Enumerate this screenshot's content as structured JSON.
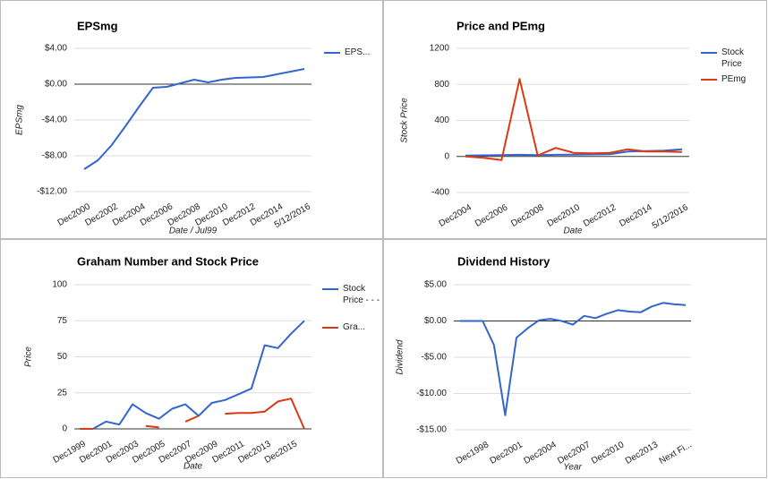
{
  "chart_data": [
    {
      "type": "line",
      "title": "EPSmg",
      "y_label": "EPSmg",
      "x_label": "Date / Jul99",
      "categories": [
        "Dec2000",
        null,
        "Dec2002",
        null,
        "Dec2004",
        null,
        "Dec2006",
        null,
        "Dec2008",
        null,
        "Dec2010",
        null,
        "Dec2012",
        null,
        "Dec2014",
        null,
        "5/12/2016"
      ],
      "series": [
        {
          "name": "EPS...",
          "color": "#3366cc",
          "values": [
            -9.5,
            -8.5,
            -6.8,
            -4.7,
            -2.5,
            -0.4,
            -0.3,
            0.1,
            0.5,
            0.2,
            0.5,
            0.7,
            0.75,
            0.8,
            1.1,
            1.4,
            1.7
          ]
        }
      ],
      "ylim": [
        -12,
        4
      ],
      "yticks": [
        {
          "value": -12,
          "label": "-$12.00"
        },
        {
          "value": -8,
          "label": "-$8.00"
        },
        {
          "value": -4,
          "label": "-$4.00"
        },
        {
          "value": 0,
          "label": "$0.00"
        },
        {
          "value": 4,
          "label": "$4.00"
        }
      ],
      "grid": true,
      "legend": "right"
    },
    {
      "type": "line",
      "title": "Price and PEmg",
      "y_label": "Stock Price",
      "x_label": "Date",
      "categories": [
        "Dec2004",
        null,
        "Dec2006",
        null,
        "Dec2008",
        null,
        "Dec2010",
        null,
        "Dec2012",
        null,
        "Dec2014",
        null,
        "5/12/2016"
      ],
      "series": [
        {
          "name": "Stock Price",
          "color": "#3366cc",
          "values": [
            10,
            12,
            15,
            18,
            15,
            18,
            20,
            22,
            25,
            55,
            60,
            65,
            80
          ]
        },
        {
          "name": "PEmg",
          "color": "#dc3912",
          "values": [
            0,
            -15,
            -40,
            860,
            10,
            95,
            40,
            35,
            40,
            80,
            55,
            55,
            50
          ]
        }
      ],
      "ylim": [
        -400,
        1200
      ],
      "yticks": [
        -400,
        0,
        400,
        800,
        1200
      ],
      "grid": true,
      "legend": "right"
    },
    {
      "type": "line",
      "title": "Graham Number and Stock Price",
      "y_label": "Price",
      "x_label": "Date",
      "categories": [
        "Dec1999",
        null,
        "Dec2001",
        null,
        "Dec2003",
        null,
        "Dec2005",
        null,
        "Dec2007",
        null,
        "Dec2009",
        null,
        "Dec2011",
        null,
        "Dec2013",
        null,
        "Dec2015",
        null
      ],
      "series": [
        {
          "name": "Stock Price - - -",
          "color": "#3366cc",
          "values": [
            0,
            0,
            5,
            3,
            17,
            11,
            7,
            14,
            17,
            9,
            18,
            20,
            24,
            28,
            58,
            56,
            66,
            75
          ]
        },
        {
          "name": "Gra...",
          "color": "#dc3912",
          "values": [
            0,
            0,
            null,
            null,
            null,
            2,
            1,
            null,
            5,
            9,
            null,
            10.5,
            11,
            11,
            12,
            19,
            21,
            0
          ]
        }
      ],
      "ylim": [
        0,
        100
      ],
      "yticks": [
        0,
        25,
        50,
        75,
        100
      ],
      "grid": true,
      "legend": "right"
    },
    {
      "type": "line",
      "title": "Dividend History",
      "y_label": "Dividend",
      "x_label": "Year",
      "categories": [
        null,
        null,
        "Dec1998",
        null,
        null,
        "Dec2001",
        null,
        null,
        "Dec2004",
        null,
        null,
        "Dec2007",
        null,
        null,
        "Dec2010",
        null,
        null,
        "Dec2013",
        null,
        null,
        "Next Fi..."
      ],
      "series": [
        {
          "color": "#3366cc",
          "values": [
            0,
            0,
            0,
            -3.3,
            -13,
            -2.3,
            -1,
            0.1,
            0.3,
            0,
            -0.5,
            0.7,
            0.4,
            1,
            1.5,
            1.3,
            1.2,
            2,
            2.5,
            2.3,
            2.2
          ]
        }
      ],
      "ylim": [
        -15,
        5
      ],
      "yticks": [
        {
          "value": -15,
          "label": "-$15.00"
        },
        {
          "value": -10,
          "label": "-$10.00"
        },
        {
          "value": -5,
          "label": "-$5.00"
        },
        {
          "value": 0,
          "label": "$0.00"
        },
        {
          "value": 5,
          "label": "$5.00"
        }
      ],
      "grid": true
    }
  ]
}
